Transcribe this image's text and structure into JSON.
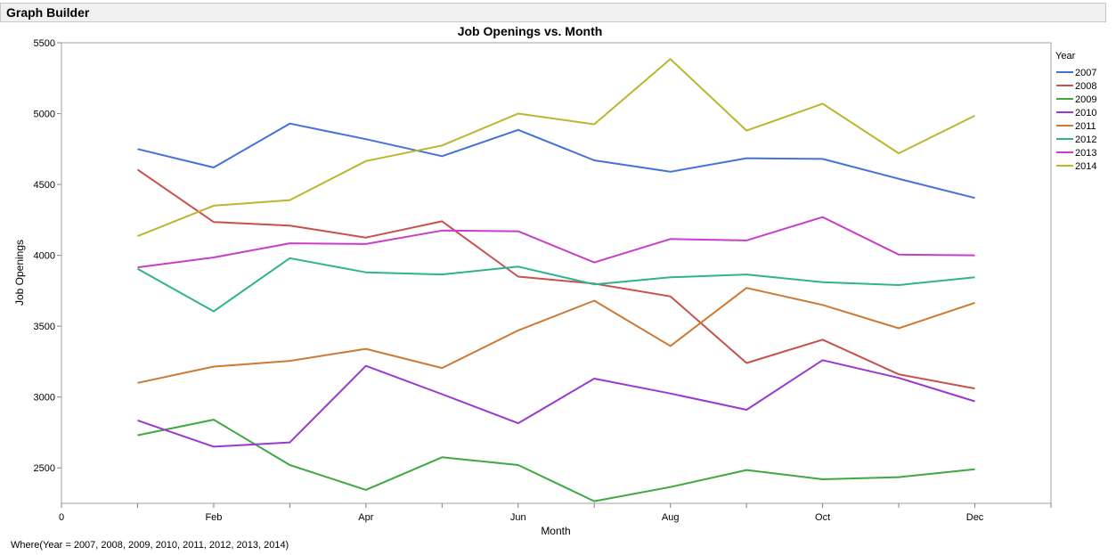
{
  "window": {
    "title": "Graph Builder"
  },
  "footer": {
    "where": "Where(Year = 2007, 2008, 2009, 2010, 2011, 2012, 2013, 2014)"
  },
  "chart_data": {
    "type": "line",
    "title": "Job Openings vs. Month",
    "xlabel": "Month",
    "ylabel": "Job Openings",
    "xlim": [
      0,
      13
    ],
    "ylim": [
      2250,
      5500
    ],
    "x_ticks": [
      {
        "value": 0,
        "label": "0"
      },
      {
        "value": 2,
        "label": "Feb"
      },
      {
        "value": 4,
        "label": "Apr"
      },
      {
        "value": 6,
        "label": "Jun"
      },
      {
        "value": 8,
        "label": "Aug"
      },
      {
        "value": 10,
        "label": "Oct"
      },
      {
        "value": 12,
        "label": "Dec"
      }
    ],
    "y_ticks": [
      2500,
      3000,
      3500,
      4000,
      4500,
      5000,
      5500
    ],
    "grid": false,
    "legend": {
      "title": "Year",
      "position": "right"
    },
    "x": [
      1,
      2,
      3,
      4,
      5,
      6,
      7,
      8,
      9,
      10,
      11,
      12
    ],
    "series": [
      {
        "name": "2007",
        "color": "#4472d8",
        "values": [
          4750,
          4620,
          4930,
          4820,
          4700,
          4885,
          4670,
          4590,
          4685,
          4680,
          4540,
          4405
        ]
      },
      {
        "name": "2008",
        "color": "#c8504e",
        "values": [
          4605,
          4235,
          4210,
          4125,
          4240,
          3850,
          3800,
          3710,
          3240,
          3405,
          3160,
          3060
        ]
      },
      {
        "name": "2009",
        "color": "#3fa83f",
        "values": [
          2730,
          2840,
          2520,
          2345,
          2575,
          2520,
          2265,
          2365,
          2485,
          2420,
          2435,
          2490
        ]
      },
      {
        "name": "2010",
        "color": "#9b38d0",
        "values": [
          2835,
          2650,
          2680,
          3220,
          3020,
          2815,
          3130,
          3025,
          2910,
          3260,
          3135,
          2970
        ]
      },
      {
        "name": "2011",
        "color": "#cc7a34",
        "values": [
          3100,
          3215,
          3255,
          3340,
          3205,
          3470,
          3680,
          3360,
          3770,
          3650,
          3485,
          3665
        ]
      },
      {
        "name": "2012",
        "color": "#2fb38f",
        "values": [
          3905,
          3605,
          3980,
          3880,
          3865,
          3920,
          3795,
          3845,
          3865,
          3810,
          3790,
          3845
        ]
      },
      {
        "name": "2013",
        "color": "#c83ec8",
        "values": [
          3915,
          3985,
          4085,
          4080,
          4175,
          4170,
          3950,
          4115,
          4105,
          4270,
          4005,
          4000
        ]
      },
      {
        "name": "2014",
        "color": "#bcb52e",
        "values": [
          4135,
          4350,
          4390,
          4665,
          4775,
          5000,
          4925,
          5385,
          4880,
          5070,
          4720,
          4985
        ]
      }
    ]
  }
}
